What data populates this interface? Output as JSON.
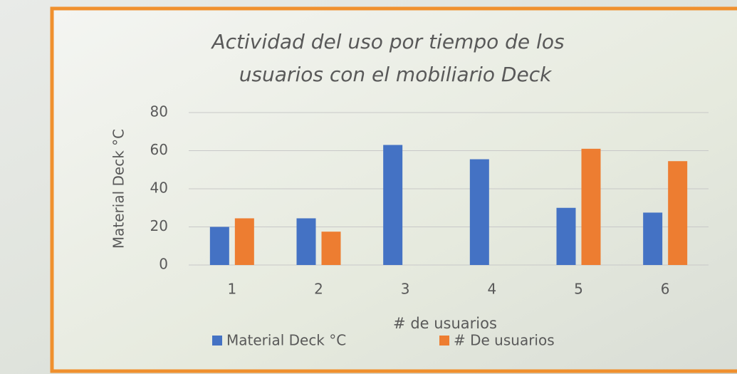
{
  "chart_data": {
    "type": "bar",
    "title": [
      "Actividad del uso por tiempo de los",
      "usuarios con el mobiliario Deck"
    ],
    "x_label": "# de usuarios",
    "y_label": "Material Deck °C",
    "categories": [
      "1",
      "2",
      "3",
      "4",
      "5",
      "6"
    ],
    "series": [
      {
        "name": "Material Deck °C",
        "color": "#4472c4",
        "values": [
          20,
          24.5,
          63,
          55.5,
          30,
          27.5
        ]
      },
      {
        "name": "# De usuarios",
        "color": "#ed7d31",
        "values": [
          24.5,
          17.5,
          null,
          null,
          61,
          54.5
        ]
      }
    ],
    "ylim": [
      0,
      80
    ],
    "yticks": [
      0,
      20,
      40,
      60,
      80
    ],
    "grid": true,
    "legend": "bottom"
  }
}
